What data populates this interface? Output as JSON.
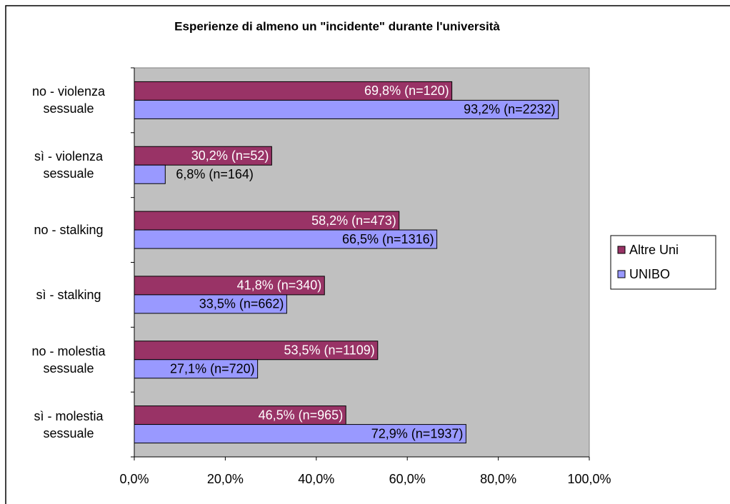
{
  "chart_data": {
    "type": "bar",
    "orientation": "horizontal",
    "title": "Esperienze di almeno un \"incidente\" durante l'università",
    "categories": [
      "no - violenza sessuale",
      "sì - violenza sessuale",
      "no - stalking",
      "sì - stalking",
      "no - molestia sessuale",
      "sì - molestia sessuale"
    ],
    "series": [
      {
        "name": "Altre Uni",
        "color": "#993366",
        "values": [
          69.8,
          30.2,
          58.2,
          41.8,
          53.5,
          46.5
        ],
        "value_labels": [
          "69,8% (n=120)",
          "30,2% (n=52)",
          "58,2% (n=473)",
          "41,8% (n=340)",
          "53,5% (n=1109)",
          "46,5% (n=965)"
        ]
      },
      {
        "name": "UNIBO",
        "color": "#9999ff",
        "values": [
          93.2,
          6.8,
          66.5,
          33.5,
          27.1,
          72.9
        ],
        "value_labels": [
          "93,2% (n=2232)",
          "6,8% (n=164)",
          "66,5% (n=1316)",
          "33,5% (n=662)",
          "27,1% (n=720)",
          "72,9% (n=1937)"
        ]
      }
    ],
    "xlim": [
      0,
      100
    ],
    "xticks": [
      {
        "value": 0,
        "label": "0,0%"
      },
      {
        "value": 20,
        "label": "20,0%"
      },
      {
        "value": 40,
        "label": "40,0%"
      },
      {
        "value": 60,
        "label": "60,0%"
      },
      {
        "value": 80,
        "label": "80,0%"
      },
      {
        "value": 100,
        "label": "100,0%"
      }
    ],
    "legend": "right",
    "plot_background": "#c0c0c0"
  }
}
